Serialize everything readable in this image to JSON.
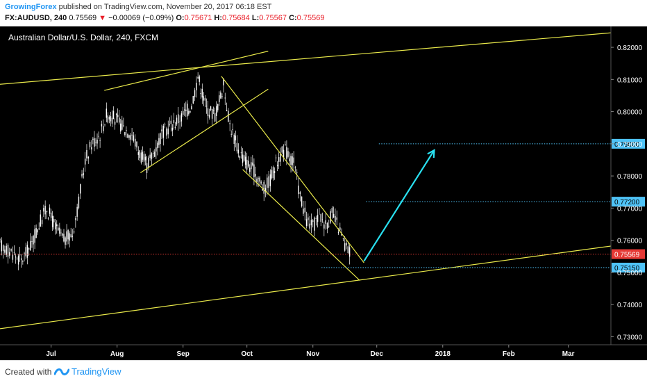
{
  "header": {
    "author": "GrowingForex",
    "published_text": "published on TradingView.com, November 20, 2017 06:18 EST",
    "symbol": "FX:AUDUSD, 240",
    "last": "0.75569",
    "change_arrow": "▼",
    "change": "−0.00069 (−0.09%)",
    "o_label": "O:",
    "o_value": "0.75671",
    "h_label": "H:",
    "h_value": "0.75684",
    "l_label": "L:",
    "l_value": "0.75567",
    "c_label": "C:",
    "c_value": "0.75569"
  },
  "footer": {
    "created_with": "Created with",
    "brand": "TradingView"
  },
  "colors": {
    "background": "#000000",
    "candle": "#ffffff",
    "trendline": "#e8e84a",
    "target_line": "#4fc3f7",
    "arrow": "#29e0f0",
    "current_price_line": "#e53935",
    "axis_text": "#ffffff"
  },
  "chart_data": {
    "type": "candlestick",
    "title": "Australian Dollar/U.S. Dollar, 240, FXCM",
    "x_ticks": [
      "Jul",
      "Aug",
      "Sep",
      "Oct",
      "Nov",
      "Dec",
      "2018",
      "Feb",
      "Mar"
    ],
    "x_tick_dates": [
      "2017-07-01",
      "2017-08-01",
      "2017-09-01",
      "2017-10-01",
      "2017-11-01",
      "2017-12-01",
      "2018-01-01",
      "2018-02-01",
      "2018-03-01"
    ],
    "y_ticks": [
      "0.82000",
      "0.81000",
      "0.80000",
      "0.79000",
      "0.78000",
      "0.77000",
      "0.76000",
      "0.75000",
      "0.74000",
      "0.73000"
    ],
    "y_tick_values": [
      0.82,
      0.81,
      0.8,
      0.79,
      0.78,
      0.77,
      0.76,
      0.75,
      0.74,
      0.73
    ],
    "ylim": [
      0.7275,
      0.8265
    ],
    "xlim": [
      "2017-06-07",
      "2018-03-21"
    ],
    "price_series": [
      {
        "date": "2017-06-07",
        "close": 0.7585
      },
      {
        "date": "2017-06-13",
        "close": 0.756
      },
      {
        "date": "2017-06-17",
        "close": 0.7535
      },
      {
        "date": "2017-06-22",
        "close": 0.759
      },
      {
        "date": "2017-06-26",
        "close": 0.766
      },
      {
        "date": "2017-06-29",
        "close": 0.77
      },
      {
        "date": "2017-07-03",
        "close": 0.764
      },
      {
        "date": "2017-07-07",
        "close": 0.76
      },
      {
        "date": "2017-07-11",
        "close": 0.762
      },
      {
        "date": "2017-07-14",
        "close": 0.772
      },
      {
        "date": "2017-07-17",
        "close": 0.785
      },
      {
        "date": "2017-07-20",
        "close": 0.79
      },
      {
        "date": "2017-07-24",
        "close": 0.793
      },
      {
        "date": "2017-07-27",
        "close": 0.799
      },
      {
        "date": "2017-07-31",
        "close": 0.798
      },
      {
        "date": "2017-08-04",
        "close": 0.795
      },
      {
        "date": "2017-08-08",
        "close": 0.793
      },
      {
        "date": "2017-08-11",
        "close": 0.788
      },
      {
        "date": "2017-08-15",
        "close": 0.783
      },
      {
        "date": "2017-08-18",
        "close": 0.787
      },
      {
        "date": "2017-08-22",
        "close": 0.793
      },
      {
        "date": "2017-08-25",
        "close": 0.795
      },
      {
        "date": "2017-08-29",
        "close": 0.797
      },
      {
        "date": "2017-09-01",
        "close": 0.799
      },
      {
        "date": "2017-09-05",
        "close": 0.802
      },
      {
        "date": "2017-09-08",
        "close": 0.811
      },
      {
        "date": "2017-09-12",
        "close": 0.801
      },
      {
        "date": "2017-09-16",
        "close": 0.799
      },
      {
        "date": "2017-09-20",
        "close": 0.808
      },
      {
        "date": "2017-09-23",
        "close": 0.796
      },
      {
        "date": "2017-09-27",
        "close": 0.788
      },
      {
        "date": "2017-10-01",
        "close": 0.784
      },
      {
        "date": "2017-10-05",
        "close": 0.781
      },
      {
        "date": "2017-10-09",
        "close": 0.776
      },
      {
        "date": "2017-10-12",
        "close": 0.779
      },
      {
        "date": "2017-10-16",
        "close": 0.786
      },
      {
        "date": "2017-10-19",
        "close": 0.788
      },
      {
        "date": "2017-10-23",
        "close": 0.784
      },
      {
        "date": "2017-10-26",
        "close": 0.774
      },
      {
        "date": "2017-10-29",
        "close": 0.766
      },
      {
        "date": "2017-11-01",
        "close": 0.764
      },
      {
        "date": "2017-11-04",
        "close": 0.768
      },
      {
        "date": "2017-11-07",
        "close": 0.765
      },
      {
        "date": "2017-11-10",
        "close": 0.768
      },
      {
        "date": "2017-11-13",
        "close": 0.764
      },
      {
        "date": "2017-11-16",
        "close": 0.758
      },
      {
        "date": "2017-11-19",
        "close": 0.7557
      }
    ],
    "trendlines": [
      {
        "from": {
          "date": "2017-06-07",
          "price": 0.8085
        },
        "to": {
          "date": "2018-03-21",
          "price": 0.8245
        }
      },
      {
        "from": {
          "date": "2017-06-07",
          "price": 0.7325
        },
        "to": {
          "date": "2018-03-21",
          "price": 0.7582
        }
      },
      {
        "from": {
          "date": "2017-07-26",
          "price": 0.8066
        },
        "to": {
          "date": "2017-10-11",
          "price": 0.8188
        }
      },
      {
        "from": {
          "date": "2017-08-12",
          "price": 0.781
        },
        "to": {
          "date": "2017-10-11",
          "price": 0.807
        }
      },
      {
        "from": {
          "date": "2017-09-19",
          "price": 0.811
        },
        "to": {
          "date": "2017-11-25",
          "price": 0.753
        }
      },
      {
        "from": {
          "date": "2017-09-29",
          "price": 0.782
        },
        "to": {
          "date": "2017-11-23",
          "price": 0.7475
        }
      }
    ],
    "target_levels": [
      0.79,
      0.772,
      0.7515
    ],
    "target_labels": [
      "0.79000",
      "0.77200",
      "0.75150"
    ],
    "current_price": 0.75569,
    "current_price_label": "0.75569",
    "forecast_arrow": {
      "from": {
        "date": "2017-11-25",
        "price": 0.7535
      },
      "to": {
        "date": "2017-12-28",
        "price": 0.788
      }
    }
  }
}
